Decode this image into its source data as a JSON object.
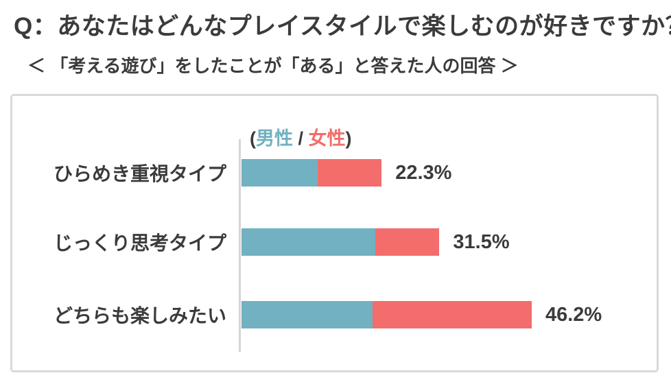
{
  "page": {
    "title": "Q：あなたはどんなプレイスタイルで楽しむのが好きですか？",
    "subtitle": "＜ 「考える遊び」をしたことが「ある」と答えた人の回答 ＞"
  },
  "legend": {
    "open_paren": "(",
    "male_label": "男性",
    "separator": " / ",
    "female_label": "女性",
    "close_paren": ")"
  },
  "colors": {
    "male": "#71b1c1",
    "female": "#f26d6b",
    "text": "#3b3b3b",
    "panel_border": "#d9d9d9",
    "axis_line": "#d6d6d6"
  },
  "chart_data": {
    "type": "bar",
    "orientation": "horizontal",
    "stacked": true,
    "unit": "%",
    "title": "Q：あなたはどんなプレイスタイルで楽しむのが好きですか？",
    "subtitle": "＜ 「考える遊び」をしたことが「ある」と答えた人の回答 ＞",
    "categories": [
      "ひらめき重視タイプ",
      "じっくり思考タイプ",
      "どちらも楽しみたい"
    ],
    "series": [
      {
        "name": "男性",
        "color": "#71b1c1",
        "values": [
          12.1,
          21.3,
          20.9
        ]
      },
      {
        "name": "女性",
        "color": "#f26d6b",
        "values": [
          10.2,
          10.2,
          25.3
        ]
      }
    ],
    "totals": [
      22.3,
      31.5,
      46.2
    ],
    "total_labels": [
      "22.3%",
      "31.5%",
      "46.2%"
    ],
    "xlim": [
      0,
      50
    ],
    "grid": false,
    "legend_position": "top",
    "legend_entries": [
      "男性",
      "女性"
    ]
  }
}
